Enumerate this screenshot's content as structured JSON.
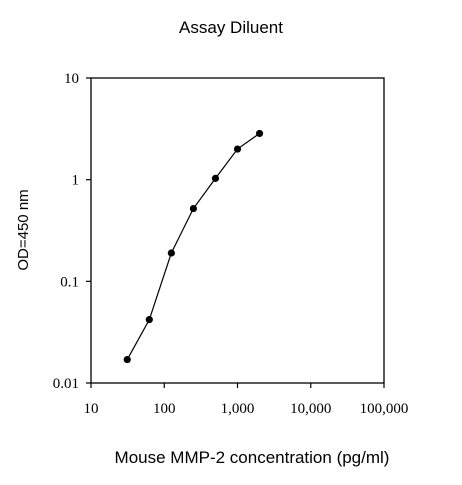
{
  "chart_data": {
    "type": "line",
    "title": "Assay Diluent",
    "xlabel": "Mouse MMP-2 concentration (pg/ml)",
    "ylabel": "OD=450 nm",
    "x_scale": "log",
    "y_scale": "log",
    "xlim": [
      10,
      100000
    ],
    "ylim": [
      0.01,
      10
    ],
    "x_ticks": [
      10,
      100,
      1000,
      10000,
      100000
    ],
    "x_tick_labels": [
      "10",
      "100",
      "1,000",
      "10,000",
      "100,000"
    ],
    "y_ticks": [
      0.01,
      0.1,
      1,
      10
    ],
    "y_tick_labels": [
      "0.01",
      "0.1",
      "1",
      "10"
    ],
    "grid": false,
    "legend": "none",
    "series": [
      {
        "x": [
          31.25,
          62.5,
          125,
          250,
          500,
          1000,
          2000
        ],
        "y": [
          0.017,
          0.042,
          0.19,
          0.52,
          1.03,
          2.0,
          2.85
        ]
      }
    ],
    "colors": {
      "line": "#000000",
      "marker": "#000000"
    }
  }
}
